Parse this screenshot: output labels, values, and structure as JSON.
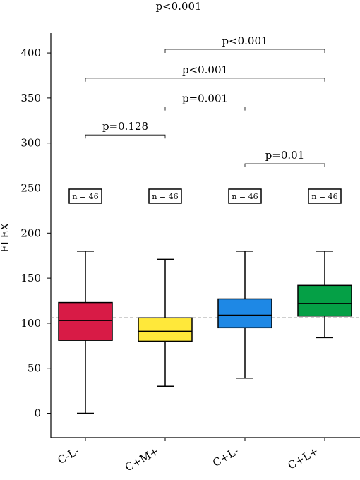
{
  "chart_data": {
    "type": "box",
    "title": "p<0.001",
    "xlabel": "",
    "ylabel": "FLEX",
    "ylim": [
      -27,
      422
    ],
    "yticks": [
      0,
      50,
      100,
      150,
      200,
      250,
      300,
      350,
      400
    ],
    "reference_line": 106,
    "grid": false,
    "categories": [
      "C-L-",
      "C+M+",
      "C+L-",
      "C+L+"
    ],
    "boxes": [
      {
        "name": "C-L-",
        "color": "#d81b46",
        "whisker_low": 0,
        "q1": 81,
        "median": 103,
        "q3": 123,
        "whisker_high": 180,
        "n_label": "n = 46"
      },
      {
        "name": "C+M+",
        "color": "#ffe83a",
        "whisker_low": 30,
        "q1": 80,
        "median": 91,
        "q3": 106,
        "whisker_high": 171,
        "n_label": "n = 46"
      },
      {
        "name": "C+L-",
        "color": "#1e88e5",
        "whisker_low": 39,
        "q1": 95,
        "median": 109,
        "q3": 127,
        "whisker_high": 180,
        "n_label": "n = 46"
      },
      {
        "name": "C+L+",
        "color": "#05a046",
        "whisker_low": 84,
        "q1": 108,
        "median": 122,
        "q3": 142,
        "whisker_high": 180,
        "n_label": "n = 46"
      }
    ],
    "comparisons": [
      {
        "from": 0,
        "to": 1,
        "label": "p=0.128",
        "y": 309
      },
      {
        "from": 1,
        "to": 2,
        "label": "p=0.001",
        "y": 340
      },
      {
        "from": 0,
        "to": 3,
        "label": "p<0.001",
        "y": 372
      },
      {
        "from": 1,
        "to": 3,
        "label": "p<0.001",
        "y": 404
      },
      {
        "from": 2,
        "to": 3,
        "label": "p=0.01",
        "y": 277
      }
    ]
  }
}
